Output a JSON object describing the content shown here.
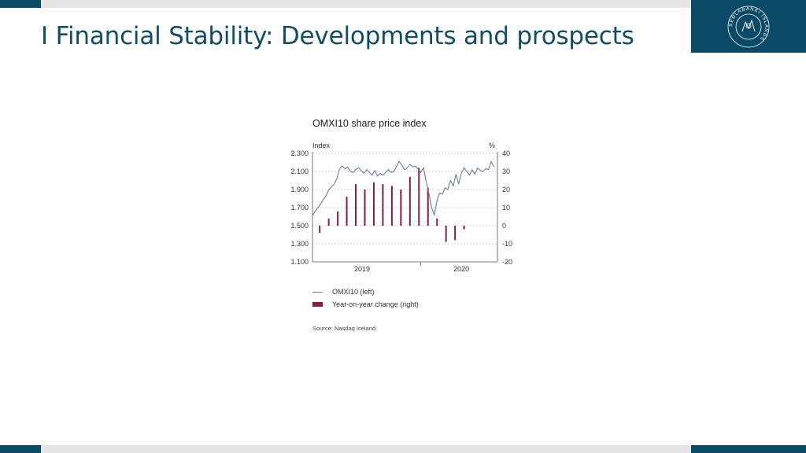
{
  "slide": {
    "title": "I Financial Stability: Developments and prospects",
    "logo_icon": "central-bank-seal-icon",
    "logo_text": "SEÐLABANKI ÍSLANDS",
    "colors": {
      "brand": "#0b4a66",
      "title": "#114d67",
      "band": "#e6e6e6"
    }
  },
  "chart_data": {
    "type": "bar+line",
    "title": "OMXI10 share price index",
    "left_axis_label": "Index",
    "right_axis_label": "%",
    "left_ticks": [
      "2.300",
      "2.100",
      "1.900",
      "1.700",
      "1.500",
      "1.300",
      "1.100"
    ],
    "right_ticks": [
      "40",
      "30",
      "20",
      "10",
      "0",
      "-10",
      "-20"
    ],
    "ylim_left": [
      1100,
      2300
    ],
    "ylim_right": [
      -20,
      40
    ],
    "x_labels": [
      "2019",
      "2020"
    ],
    "grid": "dashed horizontal",
    "legend_position": "bottom",
    "series": [
      {
        "name": "OMXI10 (left)",
        "kind": "line",
        "color": "#6c7ba0",
        "x": [
          0.0,
          0.3,
          0.6,
          0.9,
          1.2,
          1.5,
          1.8,
          2.1,
          2.4,
          2.7,
          3.0,
          3.3,
          3.6,
          3.9,
          4.2,
          4.5,
          4.8,
          5.1,
          5.4,
          5.7,
          6.0,
          6.3,
          6.6,
          6.9,
          7.2,
          7.5,
          7.8,
          8.1,
          8.4,
          8.7,
          9.0,
          9.3,
          9.6,
          9.9,
          10.2,
          10.5,
          10.8,
          11.1,
          11.4,
          11.7,
          12.0,
          12.3,
          12.6,
          12.9,
          13.2,
          13.5,
          13.8,
          14.1,
          14.4,
          14.7,
          15.0,
          15.3,
          15.6,
          15.9,
          16.2,
          16.5,
          16.8,
          17.1,
          17.4,
          17.7,
          18.0,
          18.3,
          18.6,
          18.9,
          19.2,
          19.5,
          19.8,
          20.1
        ],
        "values": [
          1610,
          1660,
          1700,
          1740,
          1790,
          1830,
          1900,
          1930,
          1960,
          2020,
          2130,
          2160,
          2130,
          2150,
          2100,
          2090,
          2120,
          2140,
          2110,
          2080,
          2120,
          2090,
          2060,
          2110,
          2050,
          2080,
          2060,
          2090,
          2120,
          2090,
          2100,
          2150,
          2210,
          2170,
          2120,
          2140,
          2180,
          2150,
          2160,
          2130,
          2090,
          2140,
          1990,
          1860,
          1700,
          1620,
          1780,
          1860,
          1850,
          1920,
          1900,
          2000,
          1940,
          2070,
          1960,
          2080,
          2140,
          2100,
          2060,
          2120,
          2070,
          2140,
          2110,
          2100,
          2130,
          2120,
          2210,
          2150
        ]
      },
      {
        "name": "Year-on-year change (right)",
        "kind": "bar",
        "color": "#8b1a4a",
        "x": [
          0.8,
          1.8,
          2.8,
          3.8,
          4.8,
          5.8,
          6.8,
          7.8,
          8.8,
          9.8,
          10.8,
          11.8,
          12.8,
          13.8,
          14.8,
          15.8,
          16.8
        ],
        "values": [
          -4,
          4,
          8,
          16,
          23,
          20,
          24,
          23,
          22,
          20,
          27,
          32,
          21,
          4,
          -9,
          -8,
          -2
        ]
      }
    ]
  },
  "legend": {
    "line_label": "OMXI10 (left)",
    "bar_label": "Year-on-year change (right)"
  },
  "source": "Source: Nasdaq Iceland."
}
